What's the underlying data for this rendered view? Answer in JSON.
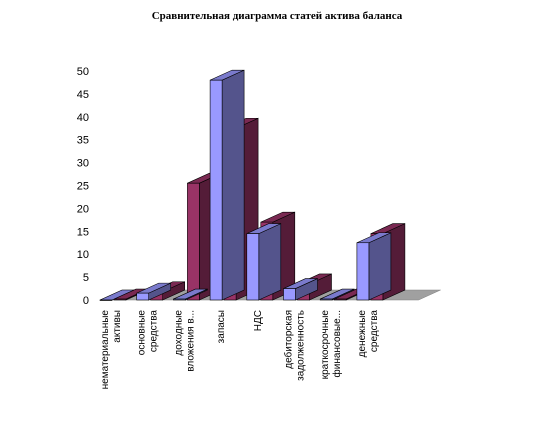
{
  "chart_data": {
    "type": "bar",
    "title": "Сравнительная диаграмма статей актива баланса",
    "xlabel": "",
    "ylabel": "",
    "ylim": [
      0,
      50
    ],
    "yticks": [
      0,
      5,
      10,
      15,
      20,
      25,
      30,
      35,
      40,
      45,
      50
    ],
    "categories": [
      [
        "нематериальные",
        "активы"
      ],
      [
        "основные",
        "средства"
      ],
      [
        "доходные",
        "вложения в..."
      ],
      [
        "запасы"
      ],
      [
        "НДС"
      ],
      [
        "дебиторская",
        "задолженность"
      ],
      [
        "краткосрочные",
        "финансовые..."
      ],
      [
        "денежные",
        "средства"
      ]
    ],
    "series": [
      {
        "color": "#9999ff",
        "values": [
          0,
          1.5,
          0.2,
          48,
          14.5,
          2.5,
          0.2,
          12.5
        ]
      },
      {
        "color": "#993366",
        "values": [
          0.2,
          1.8,
          25.5,
          37.5,
          17,
          3.5,
          0.2,
          14.5
        ]
      }
    ],
    "grid": false,
    "legend": "none"
  }
}
